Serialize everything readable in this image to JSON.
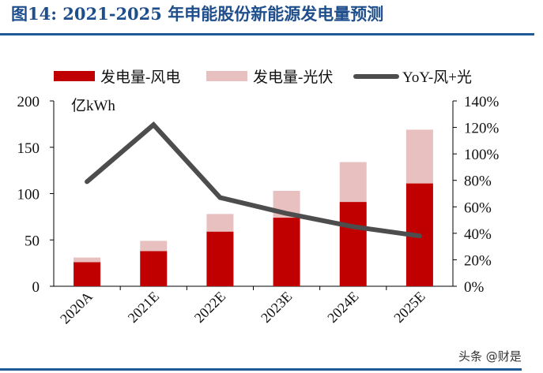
{
  "title": "图14: 2021-2025 年申能股份新能源发电量预测",
  "watermark": "头条 @财是",
  "chart_data": {
    "type": "bar",
    "stacked": true,
    "categories": [
      "2020A",
      "2021E",
      "2022E",
      "2023E",
      "2024E",
      "2025E"
    ],
    "ylabel": "亿kWh",
    "ylim": [
      0,
      200
    ],
    "yticks": [
      "0",
      "50",
      "100",
      "150",
      "200"
    ],
    "y2lim": [
      0,
      140
    ],
    "y2ticks": [
      "0%",
      "20%",
      "40%",
      "60%",
      "80%",
      "100%",
      "120%",
      "140%"
    ],
    "legend_position": "top",
    "grid": false,
    "series": [
      {
        "name": "发电量-风电",
        "type": "bar",
        "axis": "left",
        "color": "#c00000",
        "values": [
          26,
          38,
          59,
          74,
          91,
          111
        ]
      },
      {
        "name": "发电量-光伏",
        "type": "bar",
        "axis": "left",
        "color": "#e9c0c0",
        "values": [
          5,
          11,
          19,
          29,
          43,
          58
        ]
      },
      {
        "name": "YoY-风+光",
        "type": "line",
        "axis": "right",
        "unit": "%",
        "color": "#4d4d4d",
        "values": [
          79,
          122,
          67,
          55,
          45,
          38
        ]
      }
    ]
  }
}
